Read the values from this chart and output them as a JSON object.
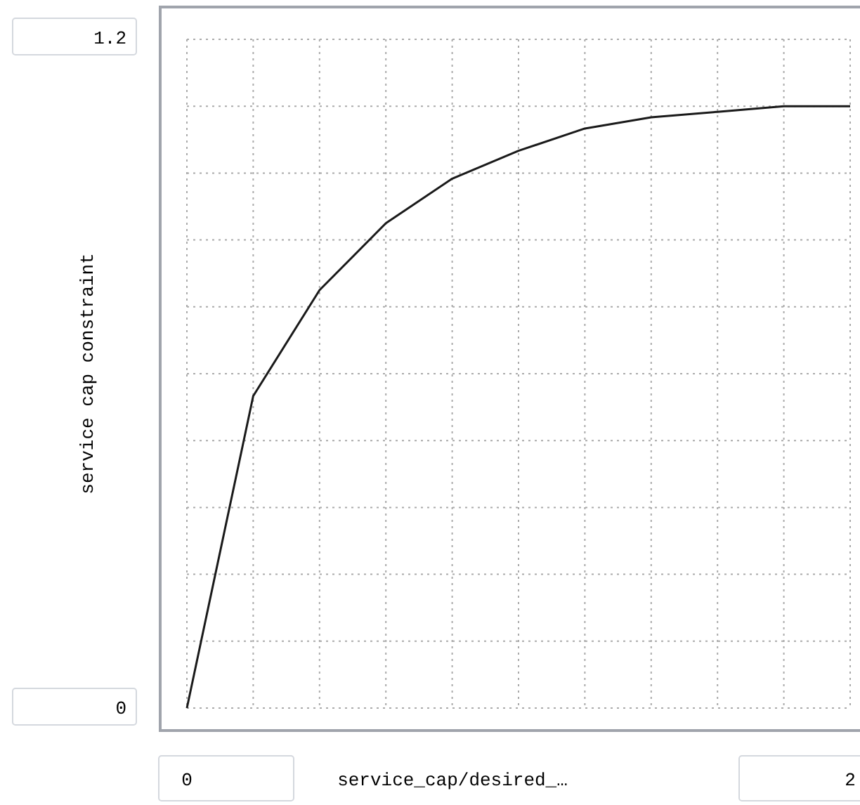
{
  "chart_data": {
    "type": "line",
    "xlabel": "service_cap/desired_…",
    "ylabel": "service cap constraint",
    "x": [
      0,
      0.2,
      0.4,
      0.6,
      0.8,
      1.0,
      1.2,
      1.4,
      1.6,
      1.8,
      2.0
    ],
    "series": [
      {
        "color": "#1a1a1a",
        "values": [
          0,
          0.56,
          0.75,
          0.87,
          0.95,
          1.0,
          1.04,
          1.06,
          1.07,
          1.08,
          1.08
        ]
      }
    ],
    "xlim": [
      0,
      2
    ],
    "ylim": [
      0,
      1.2
    ],
    "xticks": [
      0,
      {
        "value": 0.2,
        "label": null
      },
      {
        "value": 0.4,
        "label": null
      },
      {
        "value": 0.6,
        "label": null
      },
      {
        "value": 0.8,
        "label": null
      },
      {
        "value": 1.0,
        "label": null
      },
      {
        "value": 1.2,
        "label": null
      },
      {
        "value": 1.4,
        "label": null
      },
      {
        "value": 1.6,
        "label": null
      },
      {
        "value": 1.8,
        "label": null
      },
      2
    ],
    "yticks": [
      0,
      {
        "value": 0.12,
        "label": null
      },
      {
        "value": 0.24,
        "label": null
      },
      {
        "value": 0.36,
        "label": null
      },
      {
        "value": 0.48,
        "label": null
      },
      {
        "value": 0.6,
        "label": null
      },
      {
        "value": 0.72,
        "label": null
      },
      {
        "value": 0.84,
        "label": null
      },
      {
        "value": 0.96,
        "label": null
      },
      {
        "value": 1.08,
        "label": null
      },
      1.2
    ],
    "grid": true,
    "marker": "none",
    "line_style": "solid"
  }
}
